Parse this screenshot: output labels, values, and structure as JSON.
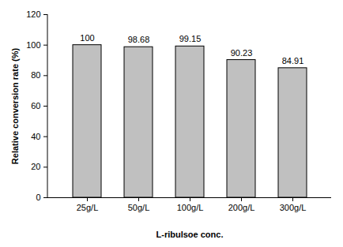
{
  "chart_data": {
    "type": "bar",
    "categories": [
      "25g/L",
      "50g/L",
      "100g/L",
      "200g/L",
      "300g/L"
    ],
    "values": [
      100,
      98.68,
      99.15,
      90.23,
      84.91
    ],
    "color": "#c0c0c0",
    "xlabel": "L-ribulsoe conc.",
    "ylabel": "Relative conversion rate (%)",
    "ylim": [
      0,
      120
    ],
    "yticks": [
      0,
      20,
      40,
      60,
      80,
      100,
      120
    ],
    "grid": false,
    "data_labels": true
  }
}
